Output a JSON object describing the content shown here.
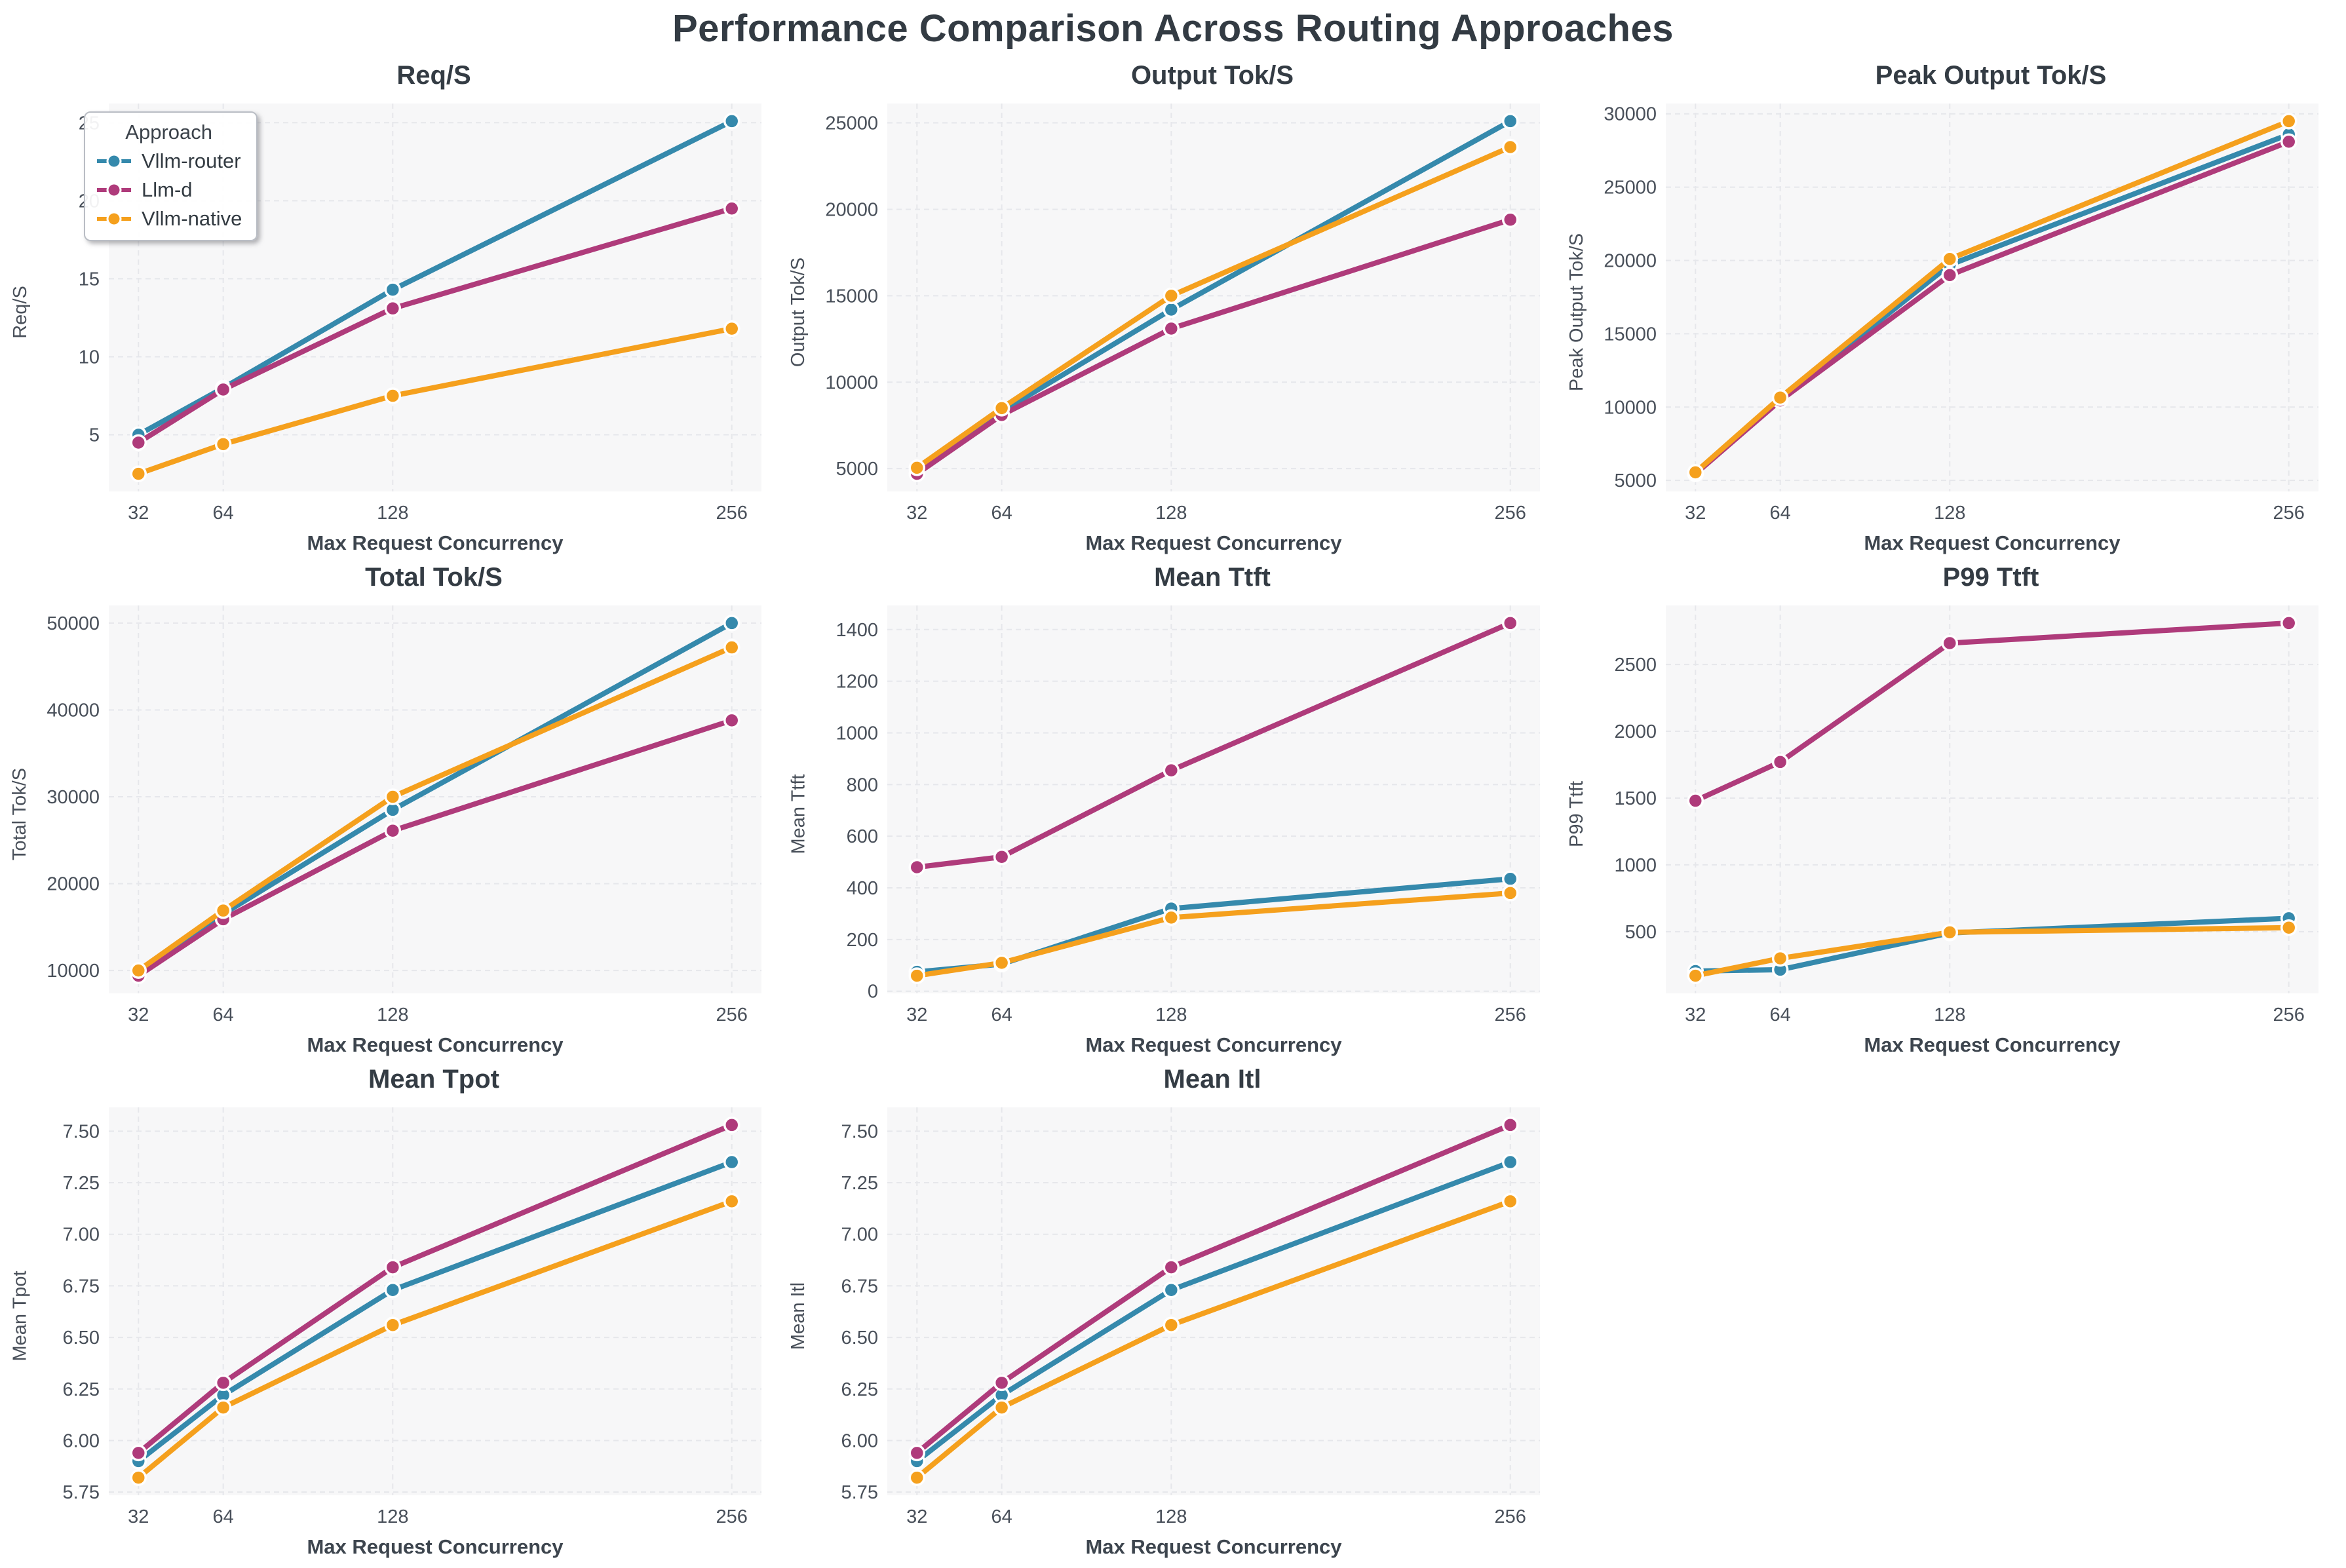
{
  "page": {
    "title": "Performance Comparison Across Routing Approaches"
  },
  "colors": {
    "background": "#ffffff",
    "plot_background": "#f7f7f8",
    "grid": "#e6e7eb",
    "title_text": "#343c44",
    "axis_label_text": "#3d454e",
    "tick_text": "#49505a"
  },
  "approaches": [
    {
      "name": "Vllm-router",
      "color": "#3589AC"
    },
    {
      "name": "Llm-d",
      "color": "#AF3B7B"
    },
    {
      "name": "Vllm-native",
      "color": "#F5A01D"
    }
  ],
  "legend": {
    "title": "Approach"
  },
  "chart_data": [
    {
      "type": "line",
      "title": "Req/S",
      "xlabel": "Max Request Concurrency",
      "ylabel": "Req/S",
      "x": [
        32,
        64,
        128,
        256
      ],
      "xtick_labels": [
        "32",
        "64",
        "128",
        "256"
      ],
      "ytick_labels": [
        "5",
        "10",
        "15",
        "20",
        "25"
      ],
      "series": [
        {
          "name": "Vllm-router",
          "values": [
            5.0,
            8.0,
            14.3,
            25.1
          ]
        },
        {
          "name": "Llm-d",
          "values": [
            4.5,
            7.9,
            13.1,
            19.5
          ]
        },
        {
          "name": "Vllm-native",
          "values": [
            2.5,
            4.4,
            7.5,
            11.8
          ]
        }
      ]
    },
    {
      "type": "line",
      "title": "Output Tok/S",
      "xlabel": "Max Request Concurrency",
      "ylabel": "Output Tok/S",
      "x": [
        32,
        64,
        128,
        256
      ],
      "xtick_labels": [
        "32",
        "64",
        "128",
        "256"
      ],
      "ytick_labels": [
        "5000",
        "10000",
        "15000",
        "20000",
        "25000"
      ],
      "series": [
        {
          "name": "Vllm-router",
          "values": [
            5000,
            8300,
            14200,
            25100
          ]
        },
        {
          "name": "Llm-d",
          "values": [
            4700,
            8100,
            13100,
            19400
          ]
        },
        {
          "name": "Vllm-native",
          "values": [
            5050,
            8500,
            15000,
            23600
          ]
        }
      ]
    },
    {
      "type": "line",
      "title": "Peak Output Tok/S",
      "xlabel": "Max Request Concurrency",
      "ylabel": "Peak Output Tok/S",
      "x": [
        32,
        64,
        128,
        256
      ],
      "xtick_labels": [
        "32",
        "64",
        "128",
        "256"
      ],
      "ytick_labels": [
        "5000",
        "10000",
        "15000",
        "20000",
        "25000",
        "30000"
      ],
      "series": [
        {
          "name": "Vllm-router",
          "values": [
            5500,
            10500,
            19700,
            28600
          ]
        },
        {
          "name": "Llm-d",
          "values": [
            5450,
            10450,
            19000,
            28100
          ]
        },
        {
          "name": "Vllm-native",
          "values": [
            5550,
            10650,
            20100,
            29500
          ]
        }
      ]
    },
    {
      "type": "line",
      "title": "Total Tok/S",
      "xlabel": "Max Request Concurrency",
      "ylabel": "Total Tok/S",
      "x": [
        32,
        64,
        128,
        256
      ],
      "xtick_labels": [
        "32",
        "64",
        "128",
        "256"
      ],
      "ytick_labels": [
        "10000",
        "20000",
        "30000",
        "40000",
        "50000"
      ],
      "series": [
        {
          "name": "Vllm-router",
          "values": [
            9900,
            16500,
            28500,
            50000
          ]
        },
        {
          "name": "Llm-d",
          "values": [
            9400,
            15900,
            26100,
            38800
          ]
        },
        {
          "name": "Vllm-native",
          "values": [
            10000,
            16900,
            30000,
            47200
          ]
        }
      ]
    },
    {
      "type": "line",
      "title": "Mean Ttft",
      "xlabel": "Max Request Concurrency",
      "ylabel": "Mean Ttft",
      "x": [
        32,
        64,
        128,
        256
      ],
      "xtick_labels": [
        "32",
        "64",
        "128",
        "256"
      ],
      "ytick_labels": [
        "0",
        "200",
        "400",
        "600",
        "800",
        "1000",
        "1200",
        "1400"
      ],
      "series": [
        {
          "name": "Vllm-router",
          "values": [
            75,
            105,
            320,
            435
          ]
        },
        {
          "name": "Llm-d",
          "values": [
            480,
            520,
            855,
            1425
          ]
        },
        {
          "name": "Vllm-native",
          "values": [
            60,
            110,
            285,
            380
          ]
        }
      ]
    },
    {
      "type": "line",
      "title": "P99 Ttft",
      "xlabel": "Max Request Concurrency",
      "ylabel": "P99 Ttft",
      "x": [
        32,
        64,
        128,
        256
      ],
      "xtick_labels": [
        "32",
        "64",
        "128",
        "256"
      ],
      "ytick_labels": [
        "500",
        "1000",
        "1500",
        "2000",
        "2500"
      ],
      "series": [
        {
          "name": "Vllm-router",
          "values": [
            205,
            215,
            490,
            600
          ]
        },
        {
          "name": "Llm-d",
          "values": [
            1480,
            1770,
            2660,
            2810
          ]
        },
        {
          "name": "Vllm-native",
          "values": [
            170,
            300,
            495,
            530
          ]
        }
      ]
    },
    {
      "type": "line",
      "title": "Mean Tpot",
      "xlabel": "Max Request Concurrency",
      "ylabel": "Mean Tpot",
      "x": [
        32,
        64,
        128,
        256
      ],
      "xtick_labels": [
        "32",
        "64",
        "128",
        "256"
      ],
      "ytick_labels": [
        "5.75",
        "6.00",
        "6.25",
        "6.50",
        "6.75",
        "7.00",
        "7.25",
        "7.50"
      ],
      "series": [
        {
          "name": "Vllm-router",
          "values": [
            5.9,
            6.22,
            6.73,
            7.35
          ]
        },
        {
          "name": "Llm-d",
          "values": [
            5.94,
            6.28,
            6.84,
            7.53
          ]
        },
        {
          "name": "Vllm-native",
          "values": [
            5.82,
            6.16,
            6.56,
            7.16
          ]
        }
      ]
    },
    {
      "type": "line",
      "title": "Mean Itl",
      "xlabel": "Max Request Concurrency",
      "ylabel": "Mean Itl",
      "x": [
        32,
        64,
        128,
        256
      ],
      "xtick_labels": [
        "32",
        "64",
        "128",
        "256"
      ],
      "ytick_labels": [
        "5.75",
        "6.00",
        "6.25",
        "6.50",
        "6.75",
        "7.00",
        "7.25",
        "7.50"
      ],
      "series": [
        {
          "name": "Vllm-router",
          "values": [
            5.9,
            6.22,
            6.73,
            7.35
          ]
        },
        {
          "name": "Llm-d",
          "values": [
            5.94,
            6.28,
            6.84,
            7.53
          ]
        },
        {
          "name": "Vllm-native",
          "values": [
            5.82,
            6.16,
            6.56,
            7.16
          ]
        }
      ]
    }
  ]
}
